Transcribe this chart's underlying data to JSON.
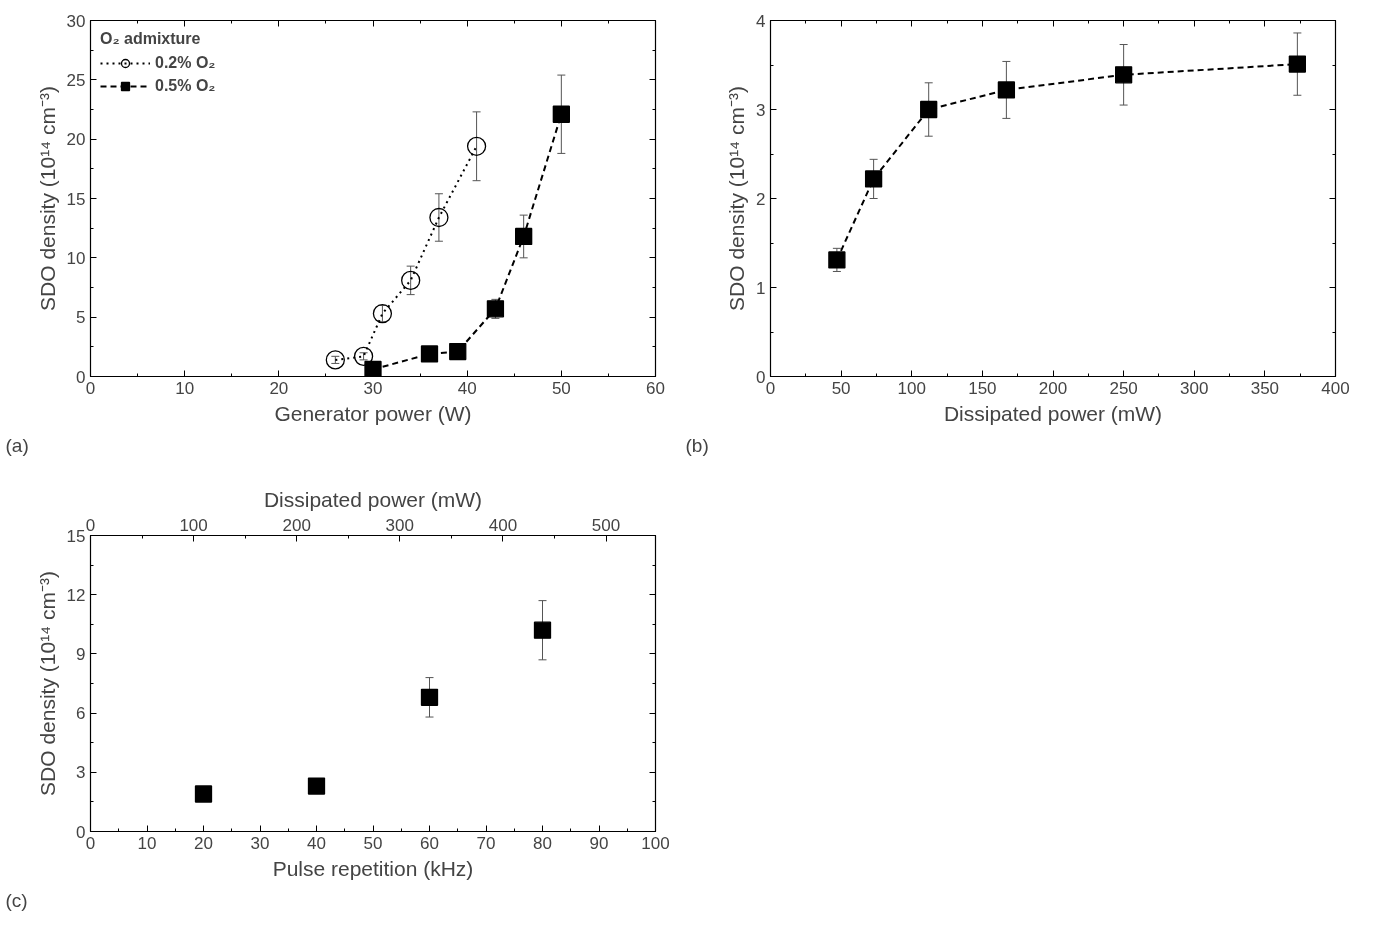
{
  "chart_data": [
    {
      "type": "line",
      "xlabel": "Generator power (W)",
      "ylabel": "SDO density (10¹⁴ cm⁻³)",
      "xlim": [
        0,
        60
      ],
      "xticks": [
        0,
        10,
        20,
        30,
        40,
        50,
        60
      ],
      "ylim": [
        0,
        30
      ],
      "yticks": [
        0,
        5,
        10,
        15,
        20,
        25,
        30
      ],
      "legend": "top left",
      "legend_title": "O₂ admixture",
      "annotations": [
        "(a)"
      ],
      "series": [
        {
          "name": "0.2% O₂",
          "color": "#000000",
          "marker": "circle",
          "line_style": "dotted",
          "x": [
            26,
            29,
            31,
            34,
            37,
            41
          ],
          "values": [
            1.4,
            1.7,
            5.3,
            8.1,
            13.4,
            19.4
          ],
          "errors": [
            0.3,
            0.3,
            0.7,
            1.2,
            2.0,
            2.9
          ]
        },
        {
          "name": "0.5% O₂",
          "color": "#000000",
          "marker": "square",
          "line_style": "dashed",
          "x": [
            30,
            36,
            39,
            43,
            46,
            50
          ],
          "values": [
            0.6,
            1.9,
            2.1,
            5.7,
            11.8,
            22.1
          ],
          "errors": [
            0.2,
            0.2,
            0.2,
            0.8,
            1.8,
            3.3
          ]
        }
      ]
    },
    {
      "type": "line",
      "xlabel": "Dissipated power (mW)",
      "ylabel": "SDO density (10¹⁴ cm⁻³)",
      "xlim": [
        0,
        400
      ],
      "xticks": [
        0,
        50,
        100,
        150,
        200,
        250,
        300,
        350,
        400
      ],
      "ylim": [
        0,
        4
      ],
      "yticks": [
        0,
        1,
        2,
        3,
        4
      ],
      "annotations": [
        "(b)"
      ],
      "series": [
        {
          "color": "#000000",
          "marker": "square",
          "line_style": "dashed",
          "x": [
            47,
            73,
            112,
            167,
            250,
            373
          ],
          "values": [
            1.31,
            2.22,
            3.0,
            3.22,
            3.39,
            3.51
          ],
          "errors": [
            0.13,
            0.22,
            0.3,
            0.32,
            0.34,
            0.35
          ]
        }
      ]
    },
    {
      "type": "scatter",
      "xlabel": "Pulse repetition (kHz)",
      "x2label": "Dissipated power (mW)",
      "ylabel": "SDO density (10¹⁴ cm⁻³)",
      "xlim": [
        0,
        100
      ],
      "xticks": [
        0,
        10,
        20,
        30,
        40,
        50,
        60,
        70,
        80,
        90,
        100
      ],
      "x2lim": [
        0,
        548
      ],
      "x2ticks": [
        0,
        100,
        200,
        300,
        400,
        500
      ],
      "ylim": [
        0,
        15
      ],
      "yticks": [
        0,
        3,
        6,
        9,
        12,
        15
      ],
      "annotations": [
        "(c)"
      ],
      "series": [
        {
          "color": "#000000",
          "marker": "square",
          "x": [
            20,
            40,
            60,
            80
          ],
          "values": [
            1.9,
            2.3,
            6.8,
            10.2
          ],
          "errors": [
            null,
            0.25,
            1.0,
            1.5
          ]
        }
      ]
    }
  ]
}
